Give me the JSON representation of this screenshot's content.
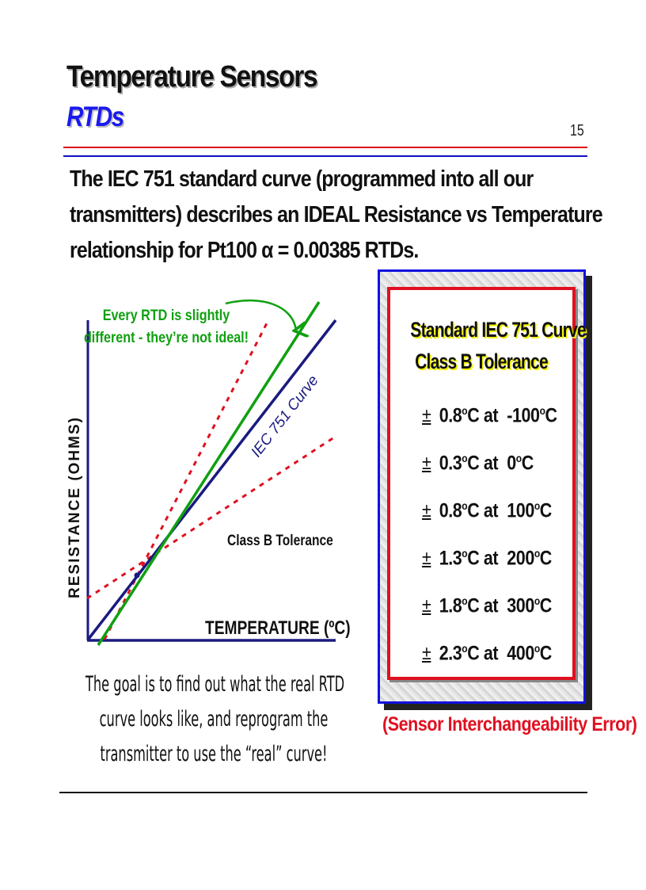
{
  "header": {
    "title": "Temperature Sensors",
    "subtitle": "RTDs",
    "page_number": "15"
  },
  "intro": {
    "lines": [
      "The IEC 751 standard curve (programmed into all our",
      "transmitters) describes an IDEAL Resistance vs Temperature",
      "relationship for Pt100 α = 0.00385 RTDs."
    ]
  },
  "diagram": {
    "y_axis_label": "RESISTANCE (OHMS)",
    "x_axis_label": "TEMPERATURE (ºC)",
    "annotation_line1": "Every RTD is slightly",
    "annotation_line2": "different - they’re not ideal!",
    "curve_label": "IEC 751 Curve",
    "tolerance_label": "Class B Tolerance",
    "colors": {
      "axis": "#1a1a80",
      "ideal": "#1a1a80",
      "real": "#10a010",
      "tolerance": "#e01020",
      "annotation": "#10a010"
    }
  },
  "panel": {
    "title_line1": "Standard IEC 751 Curve",
    "title_line2": "Class B Tolerance",
    "rows": [
      {
        "pm": "±",
        "tol": "0.8",
        "at": "-100"
      },
      {
        "pm": "±",
        "tol": "0.3",
        "at": "0"
      },
      {
        "pm": "±",
        "tol": "0.8",
        "at": "100"
      },
      {
        "pm": "±",
        "tol": "1.3",
        "at": "200"
      },
      {
        "pm": "±",
        "tol": "1.8",
        "at": "300"
      },
      {
        "pm": "±",
        "tol": "2.3",
        "at": "400"
      }
    ],
    "unit": "C",
    "degree": "o",
    "at_word": "at"
  },
  "goal": {
    "lines": [
      "The goal is to find out what the real RTD",
      "curve looks like, and reprogram the",
      "transmitter to use the “real” curve!"
    ]
  },
  "error_note": "(Sensor Interchangeability Error)"
}
